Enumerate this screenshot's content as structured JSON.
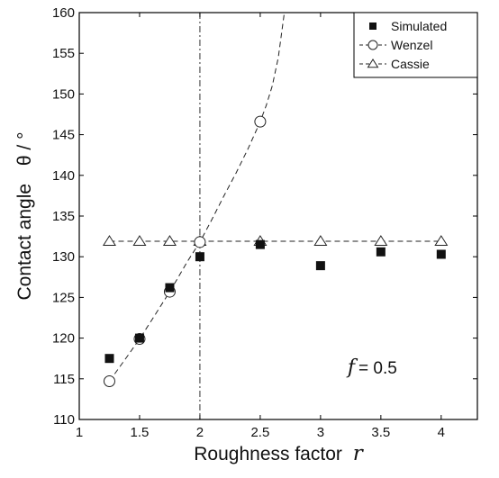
{
  "chart_data": {
    "type": "scatter",
    "xlabel": "Roughness factor",
    "xlabel_var": "r",
    "ylabel": "Contact angle",
    "ylabel_var": "θ / °",
    "xlim": [
      1,
      4.3
    ],
    "ylim": [
      110,
      160
    ],
    "xticks": [
      1,
      1.5,
      2,
      2.5,
      3,
      3.5,
      4
    ],
    "xtick_labels": [
      "1",
      "1.5",
      "2",
      "2.5",
      "3",
      "3.5",
      "4"
    ],
    "yticks": [
      110,
      115,
      120,
      125,
      130,
      135,
      140,
      145,
      150,
      155,
      160
    ],
    "ytick_labels": [
      "110",
      "115",
      "120",
      "125",
      "130",
      "135",
      "140",
      "145",
      "150",
      "155",
      "160"
    ],
    "grid": false,
    "legend_position": "top-right",
    "series": [
      {
        "name": "Simulated",
        "marker": "filled-square",
        "line": "none",
        "x": [
          1.25,
          1.5,
          1.75,
          2.0,
          2.5,
          3.0,
          3.5,
          4.0
        ],
        "y": [
          117.5,
          120.0,
          126.2,
          130.0,
          131.5,
          128.9,
          130.6,
          130.3
        ]
      },
      {
        "name": "Wenzel",
        "marker": "open-circle",
        "line": "dashed",
        "x": [
          1.25,
          1.5,
          1.75,
          2.0,
          2.5
        ],
        "y": [
          114.7,
          119.9,
          125.7,
          131.8,
          146.6
        ],
        "curve_x": [
          1.25,
          1.4,
          1.5,
          1.6,
          1.75,
          1.9,
          2.0,
          2.1,
          2.2,
          2.3,
          2.4,
          2.5,
          2.55,
          2.6,
          2.65,
          2.7
        ],
        "curve_y": [
          114.7,
          117.8,
          119.9,
          122.2,
          125.7,
          129.5,
          131.8,
          134.6,
          137.5,
          140.3,
          143.3,
          146.6,
          148.6,
          151.0,
          154.5,
          160.0
        ]
      },
      {
        "name": "Cassie",
        "marker": "open-triangle",
        "line": "dashed",
        "x": [
          1.25,
          1.5,
          1.75,
          2.0,
          2.5,
          3.0,
          3.5,
          4.0
        ],
        "y": [
          131.9,
          131.9,
          131.9,
          131.9,
          131.9,
          131.9,
          131.9,
          131.9
        ]
      }
    ],
    "reference_line": {
      "x": 2,
      "style": "dash-dot"
    },
    "annotation": {
      "var": "f",
      "text": " = 0.5",
      "x": 3.0,
      "y": 116.5
    }
  }
}
